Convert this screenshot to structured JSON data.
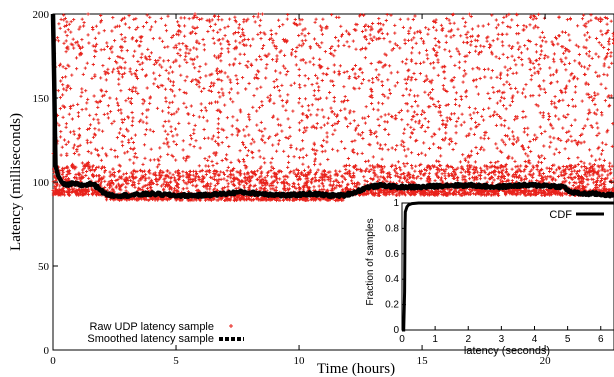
{
  "chart_data": [
    {
      "type": "scatter",
      "xlabel": "Time (hours)",
      "ylabel": "Latency (milliseconds)",
      "xlim": [
        0,
        22.8
      ],
      "ylim": [
        0,
        200
      ],
      "x_ticks": [
        "0",
        "5",
        "10",
        "15",
        "20"
      ],
      "y_ticks": [
        "0",
        "50",
        "100",
        "150",
        "200"
      ],
      "grid": false,
      "legend_position": "bottom-left",
      "series": [
        {
          "name": "Raw UDP latency sample",
          "style": "red plus markers",
          "color": "#e8221b",
          "description_values": {
            "floor_segments": [
              {
                "x": [
                  0,
                  2.1
                ],
                "y_min": 92
              },
              {
                "x": [
                  2.1,
                  11.8
                ],
                "y_min": 89
              },
              {
                "x": [
                  11.8,
                  22.8
                ],
                "y_min": 92
              }
            ],
            "upper_bound_clipped": 200
          }
        },
        {
          "name": "Smoothed latency sample",
          "style": "thick black line",
          "color": "#000000",
          "x": [
            0,
            0.05,
            0.1,
            0.2,
            0.35,
            0.5,
            0.8,
            1.2,
            1.6,
            1.9,
            2.1,
            2.4,
            3.0,
            4.0,
            5.0,
            6.0,
            7.0,
            7.6,
            8.5,
            9.5,
            10.5,
            11.2,
            11.8,
            12.3,
            12.8,
            13.4,
            14.0,
            15.0,
            16.0,
            17.0,
            18.0,
            19.0,
            20.0,
            20.8,
            21.0,
            21.5,
            22.0,
            22.8
          ],
          "y": [
            200,
            160,
            110,
            104,
            100,
            98,
            99,
            98,
            99,
            96,
            93,
            92,
            92,
            93,
            92,
            92,
            93,
            94,
            93,
            92,
            93,
            92,
            92,
            94,
            97,
            98,
            97,
            97,
            98,
            98,
            97,
            98,
            98,
            97,
            94,
            93,
            93,
            92
          ]
        }
      ]
    },
    {
      "type": "line",
      "inset": true,
      "xlabel": "latency (seconds)",
      "ylabel": "Fraction of samples",
      "xlim": [
        0,
        6.4
      ],
      "ylim": [
        0,
        1
      ],
      "x_ticks": [
        "0",
        "1",
        "2",
        "3",
        "4",
        "5",
        "6"
      ],
      "y_ticks": [
        "0",
        "0.2",
        "0.4",
        "0.6",
        "0.8",
        "1"
      ],
      "legend_position": "top-right",
      "series": [
        {
          "name": "CDF",
          "color": "#000000",
          "x": [
            0,
            0.05,
            0.08,
            0.09,
            0.1,
            0.15,
            0.2,
            0.3,
            0.5,
            6.4
          ],
          "y": [
            0,
            0.0,
            0.3,
            0.8,
            0.93,
            0.97,
            0.985,
            0.995,
            1.0,
            1.0
          ]
        }
      ]
    }
  ]
}
